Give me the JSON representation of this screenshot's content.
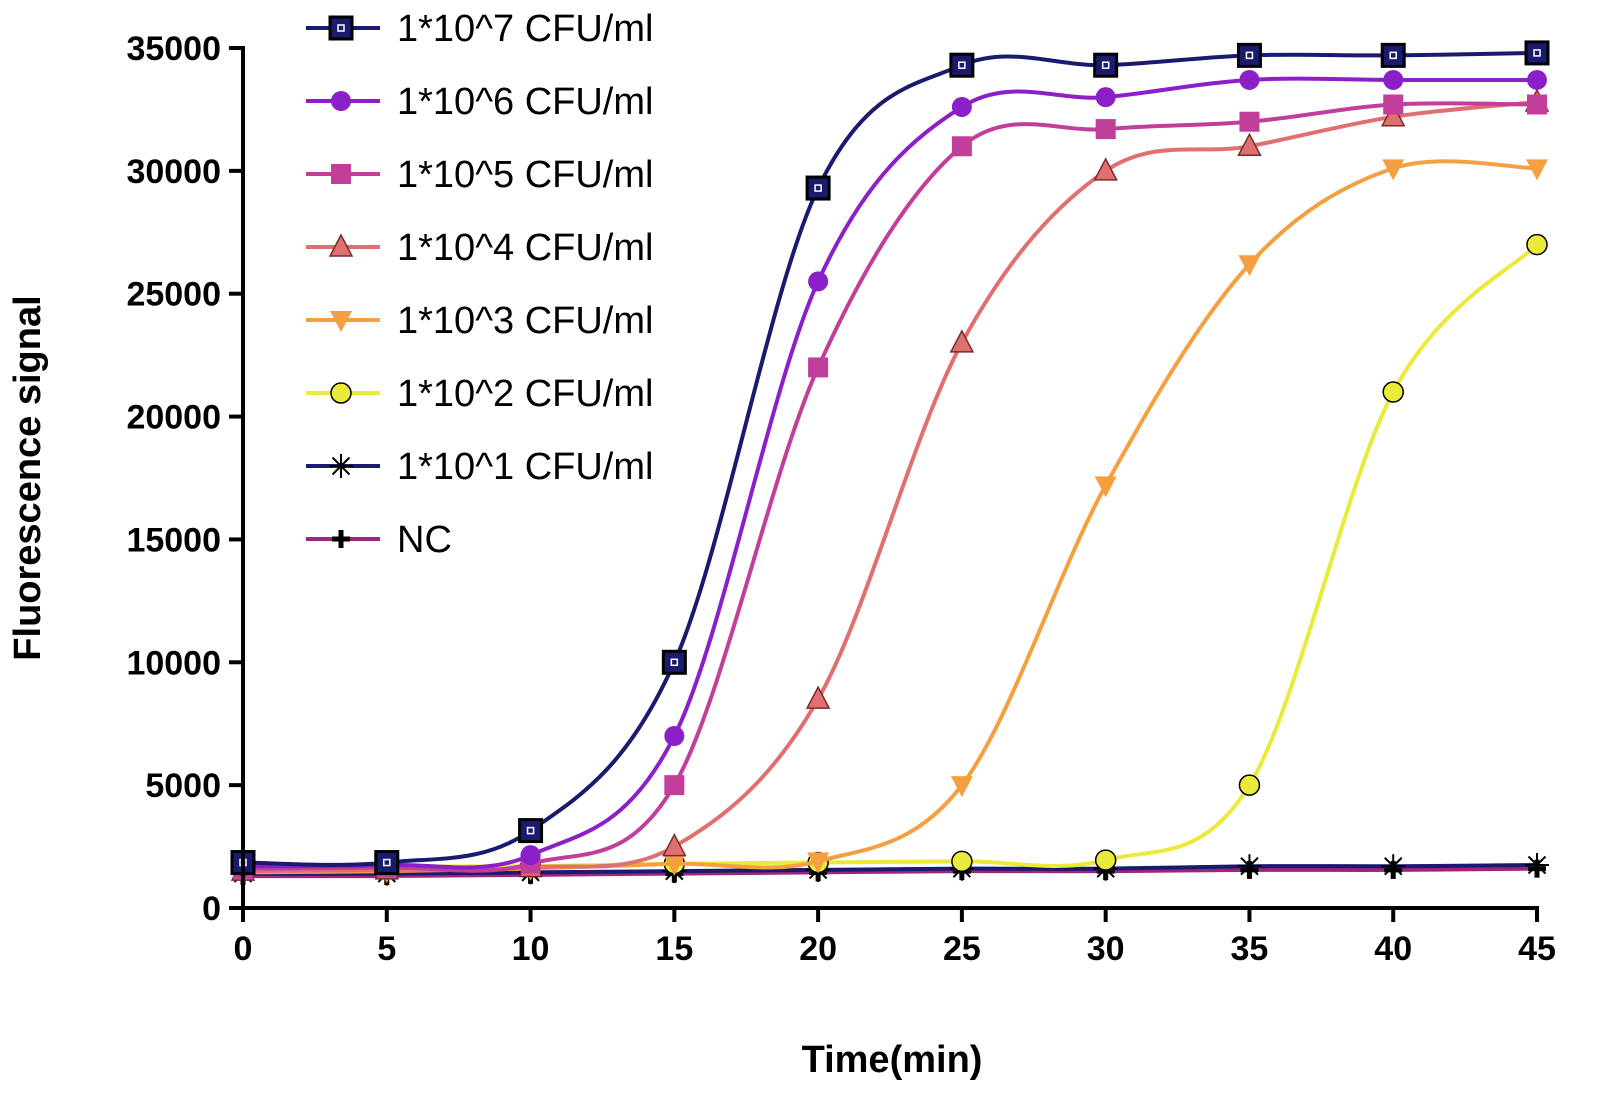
{
  "chart_data": {
    "type": "line",
    "title": "",
    "xlabel": "Time(min)",
    "ylabel": "Fluorescence signal",
    "xlim": [
      0,
      45
    ],
    "ylim": [
      0,
      35000
    ],
    "xticks": [
      0,
      5,
      10,
      15,
      20,
      25,
      30,
      35,
      40,
      45
    ],
    "yticks": [
      0,
      5000,
      10000,
      15000,
      20000,
      25000,
      30000,
      35000
    ],
    "x": [
      0,
      5,
      10,
      15,
      20,
      25,
      30,
      35,
      40,
      45
    ],
    "grid": false,
    "legend_position": "top-left",
    "series": [
      {
        "name": "1*10^7 CFU/ml",
        "color": "#1a1a6e",
        "marker": "square-open",
        "values": [
          1850,
          1850,
          3150,
          10000,
          29300,
          34300,
          34300,
          34700,
          34700,
          34800
        ]
      },
      {
        "name": "1*10^6 CFU/ml",
        "color": "#8b1fc8",
        "marker": "circle",
        "values": [
          1700,
          1750,
          2150,
          7000,
          25500,
          32600,
          33000,
          33700,
          33700,
          33700
        ]
      },
      {
        "name": "1*10^5 CFU/ml",
        "color": "#c23e9b",
        "marker": "square",
        "values": [
          1600,
          1650,
          1800,
          5000,
          22000,
          31000,
          31700,
          32000,
          32700,
          32700
        ]
      },
      {
        "name": "1*10^4 CFU/ml",
        "color": "#e07070",
        "marker": "triangle-up",
        "values": [
          1500,
          1550,
          1650,
          2500,
          8500,
          23000,
          30000,
          31000,
          32200,
          32800
        ]
      },
      {
        "name": "1*10^3 CFU/ml",
        "color": "#f5a040",
        "marker": "triangle-down",
        "values": [
          1450,
          1500,
          1600,
          1800,
          1900,
          5000,
          17200,
          26200,
          30100,
          30100
        ]
      },
      {
        "name": "1*10^2 CFU/ml",
        "color": "#eaea3a",
        "marker": "circle-outline",
        "values": [
          1700,
          1700,
          1700,
          1800,
          1850,
          1900,
          1950,
          5000,
          21000,
          27000
        ]
      },
      {
        "name": "1*10^1 CFU/ml",
        "color": "#1a1a6e",
        "marker": "asterisk",
        "values": [
          1400,
          1400,
          1450,
          1500,
          1550,
          1600,
          1600,
          1700,
          1700,
          1750
        ]
      },
      {
        "name": "NC",
        "color": "#a0247a",
        "marker": "plus",
        "values": [
          1300,
          1300,
          1350,
          1400,
          1450,
          1500,
          1500,
          1550,
          1550,
          1600
        ]
      }
    ]
  }
}
